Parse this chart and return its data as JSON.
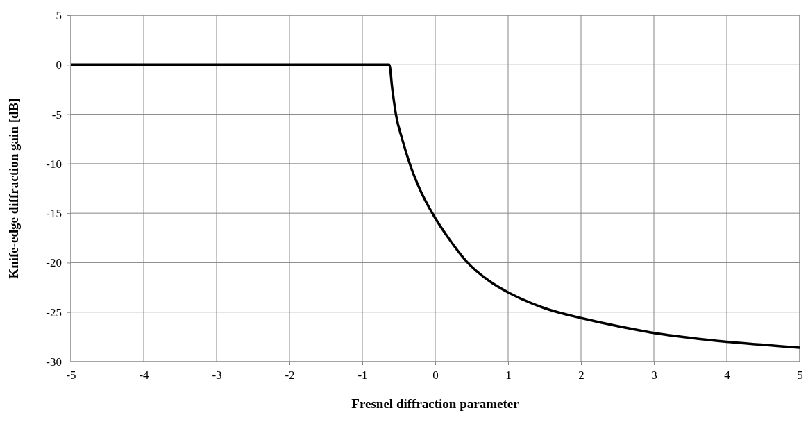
{
  "chart_data": {
    "type": "line",
    "xlabel": "Fresnel diffraction parameter",
    "ylabel": "Knife-edge diffraction gain [dB]",
    "xlim": [
      -5,
      5
    ],
    "xticks": [
      -5,
      -4,
      -3,
      -2,
      -1,
      0,
      1,
      2,
      3,
      4,
      5
    ],
    "ylim": [
      -30,
      5
    ],
    "yticks": [
      -30,
      -25,
      -20,
      -15,
      -10,
      -5,
      0,
      5
    ],
    "grid": true,
    "marker": "none",
    "line_style": "solid",
    "series": [
      {
        "color": "#000000",
        "x": [
          -5,
          -0.63,
          -0.59,
          -0.54,
          -0.45,
          -0.35,
          -0.21,
          -0.04,
          0,
          0.18,
          0.42,
          0.75,
          1,
          1.5,
          2,
          2.5,
          3,
          3.5,
          4,
          4.5,
          5
        ],
        "values": [
          0,
          0,
          -2.4,
          -5,
          -7.6,
          -10,
          -12.6,
          -15,
          -15.5,
          -17.5,
          -19.8,
          -21.9,
          -23,
          -24.6,
          -25.6,
          -26.4,
          -27.1,
          -27.6,
          -28,
          -28.3,
          -28.6
        ]
      }
    ]
  }
}
